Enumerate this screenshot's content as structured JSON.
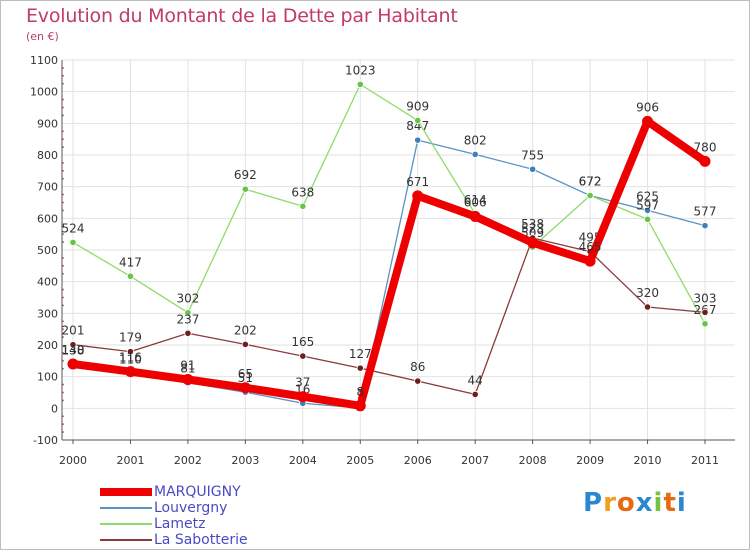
{
  "title": "Evolution du Montant de la Dette par Habitant",
  "unit": "(en €)",
  "logo": {
    "text": "Proxiti",
    "letters": [
      {
        "ch": "P",
        "color": "#2a88d0"
      },
      {
        "ch": "r",
        "color": "#f0a020"
      },
      {
        "ch": "o",
        "color": "#e86a10"
      },
      {
        "ch": "x",
        "color": "#2a88d0"
      },
      {
        "ch": "i",
        "color": "#7ac142"
      },
      {
        "ch": "t",
        "color": "#e86a10"
      },
      {
        "ch": "i",
        "color": "#2a88d0"
      }
    ]
  },
  "chart_data": {
    "type": "line",
    "title": "Evolution du Montant de la Dette par Habitant",
    "ylabel": "(en €)",
    "xlabel": "",
    "categories": [
      "2000",
      "2001",
      "2002",
      "2003",
      "2004",
      "2005",
      "2006",
      "2007",
      "2008",
      "2009",
      "2010",
      "2011"
    ],
    "ylim": [
      -100,
      1100
    ],
    "yticks": [
      -100,
      0,
      100,
      200,
      300,
      400,
      500,
      600,
      700,
      800,
      900,
      1000,
      1100
    ],
    "series": [
      {
        "name": "Louvergny",
        "color": "#5b92c4",
        "dot": "#3d7fc0",
        "width": 1.3,
        "values": [
          138,
          110,
          81,
          51,
          16,
          1,
          847,
          802,
          755,
          672,
          625,
          577
        ],
        "labels": [
          "138",
          "110",
          "81",
          "51",
          "16",
          "1",
          "847",
          "802",
          "755",
          "672",
          "625",
          "577"
        ]
      },
      {
        "name": "Lametz",
        "color": "#8fdb6a",
        "dot": "#6ac444",
        "width": 1.3,
        "values": [
          524,
          417,
          302,
          692,
          638,
          1023,
          909,
          614,
          509,
          672,
          597,
          267
        ],
        "labels": [
          "524",
          "417",
          "302",
          "692",
          "638",
          "1023",
          "909",
          "614",
          "509",
          "672",
          "597",
          "267"
        ]
      },
      {
        "name": "La Sabotterie",
        "color": "#8b3a3a",
        "dot": "#6e1e1e",
        "width": 1.3,
        "values": [
          201,
          179,
          237,
          202,
          165,
          127,
          86,
          44,
          538,
          495,
          320,
          303
        ],
        "labels": [
          "201",
          "179",
          "237",
          "202",
          "165",
          "127",
          "86",
          "44",
          "538",
          "495",
          "320",
          "303"
        ]
      },
      {
        "name": "MARQUIGNY",
        "color": "#ee0000",
        "dot": "#ee0000",
        "width": 8,
        "values": [
          140,
          116,
          91,
          65,
          37,
          8,
          671,
          606,
          523,
          465,
          906,
          780
        ],
        "labels": [
          "140",
          "116",
          "91",
          "65",
          "37",
          "8",
          "671",
          "606",
          "523",
          "465",
          "906",
          "780"
        ]
      }
    ],
    "legend_order": [
      "MARQUIGNY",
      "Louvergny",
      "Lametz",
      "La Sabotterie"
    ],
    "legend_position": "bottom-left"
  }
}
